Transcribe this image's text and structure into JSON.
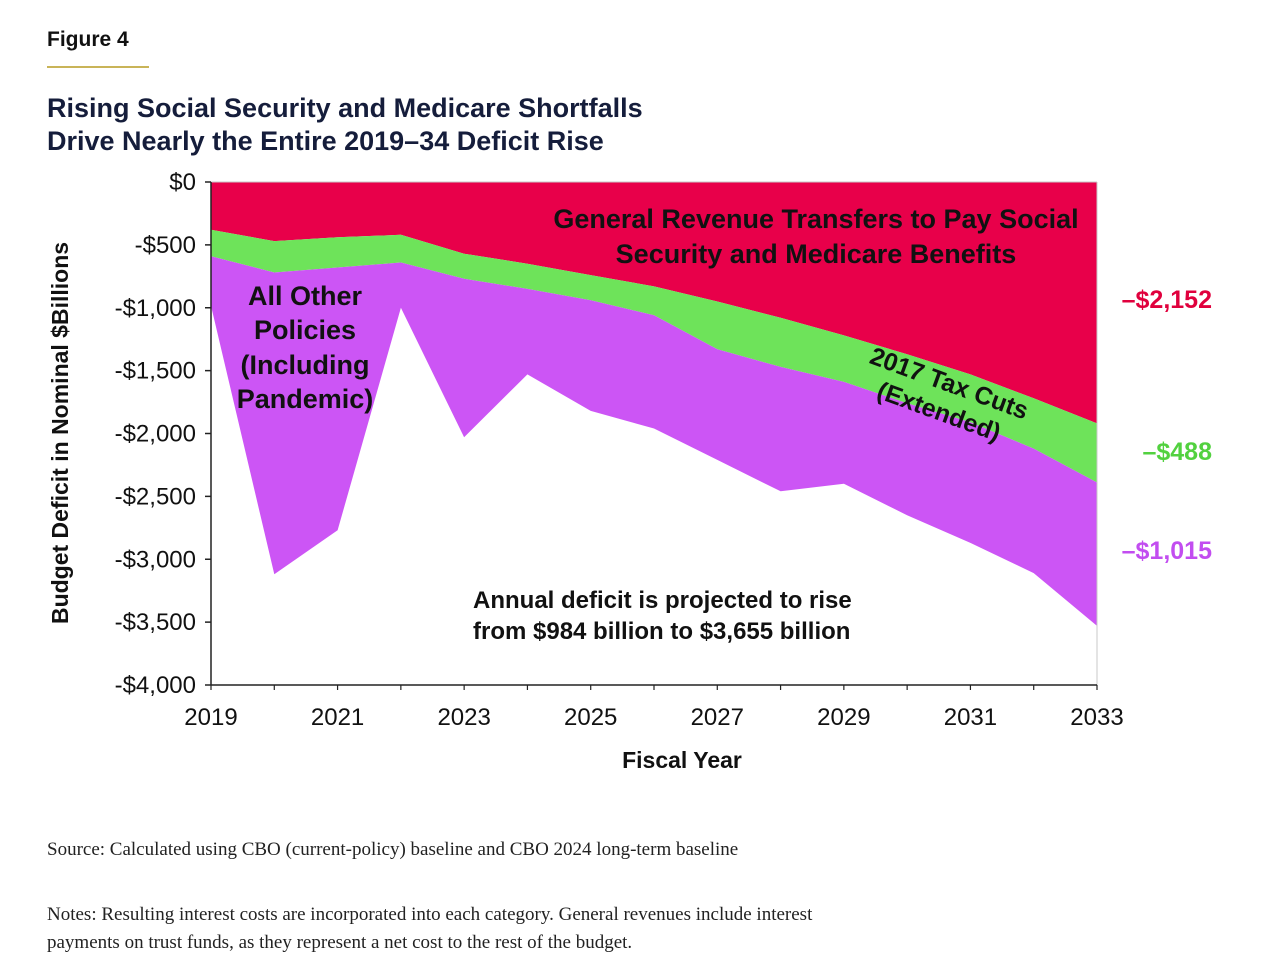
{
  "figure_label": "Figure 4",
  "title_lines": [
    "Rising Social Security and Medicare Shortfalls",
    "Drive Nearly the Entire 2019–34 Deficit Rise"
  ],
  "colors": {
    "general_revenue": "#e8004a",
    "tax_cuts": "#6ee35a",
    "other_policies": "#cc55f5",
    "label_red": "#e0003d",
    "label_green": "#52d13f",
    "label_purple": "#c24df0",
    "rule": "#c9b458"
  },
  "chart_data": {
    "type": "area",
    "title": "Rising Social Security and Medicare Shortfalls Drive Nearly the Entire 2019–34 Deficit Rise",
    "xlabel": "Fiscal Year",
    "ylabel": "Budget Deficit in Nominal $Billions",
    "x": [
      2019,
      2020,
      2021,
      2022,
      2023,
      2024,
      2025,
      2026,
      2027,
      2028,
      2029,
      2030,
      2031,
      2032,
      2033
    ],
    "xlim": [
      2019,
      2033
    ],
    "ylim": [
      -4000,
      0
    ],
    "x_ticks": [
      "2019",
      "2021",
      "2023",
      "2025",
      "2027",
      "2029",
      "2031",
      "2033"
    ],
    "y_ticks": [
      "$0",
      "-$500",
      "-$1,000",
      "-$1,500",
      "-$2,000",
      "-$2,500",
      "-$3,000",
      "-$3,500",
      "-$4,000"
    ],
    "series": [
      {
        "name": "General Revenue Transfers to Pay Social Security and Medicare Benefits",
        "values": [
          -380,
          -470,
          -440,
          -420,
          -570,
          -650,
          -740,
          -830,
          -950,
          -1080,
          -1220,
          -1370,
          -1530,
          -1720,
          -1920
        ]
      },
      {
        "name": "2017 Tax Cuts (Extended)",
        "values": [
          -210,
          -250,
          -240,
          -220,
          -200,
          -200,
          -200,
          -230,
          -380,
          -390,
          -370,
          -390,
          -380,
          -400,
          -470
        ]
      },
      {
        "name": "All Other Policies (Including Pandemic)",
        "values": [
          -394,
          -2400,
          -2090,
          -360,
          -1260,
          -680,
          -880,
          -900,
          -880,
          -990,
          -810,
          -890,
          -960,
          -990,
          -1140
        ]
      }
    ],
    "annotations": {
      "general_revenue": [
        "General Revenue Transfers to Pay Social",
        "Security and Medicare Benefits"
      ],
      "tax_cuts": [
        "2017 Tax Cuts",
        "(Extended)"
      ],
      "other_policies": [
        "All Other",
        "Policies",
        "(Including",
        "Pandemic)"
      ],
      "deficit_note": [
        "Annual deficit is projected to rise",
        "from $984 billion to $3,655 billion"
      ]
    },
    "end_labels": {
      "general_revenue": "–$2,152",
      "tax_cuts": "–$488",
      "other_policies": "–$1,015"
    }
  },
  "source": "Source: Calculated using CBO (current-policy) baseline and CBO 2024 long-term baseline",
  "notes": "Notes: Resulting interest costs are incorporated into each category. General revenues include interest payments on trust funds, as they represent a net cost to the rest of the budget."
}
